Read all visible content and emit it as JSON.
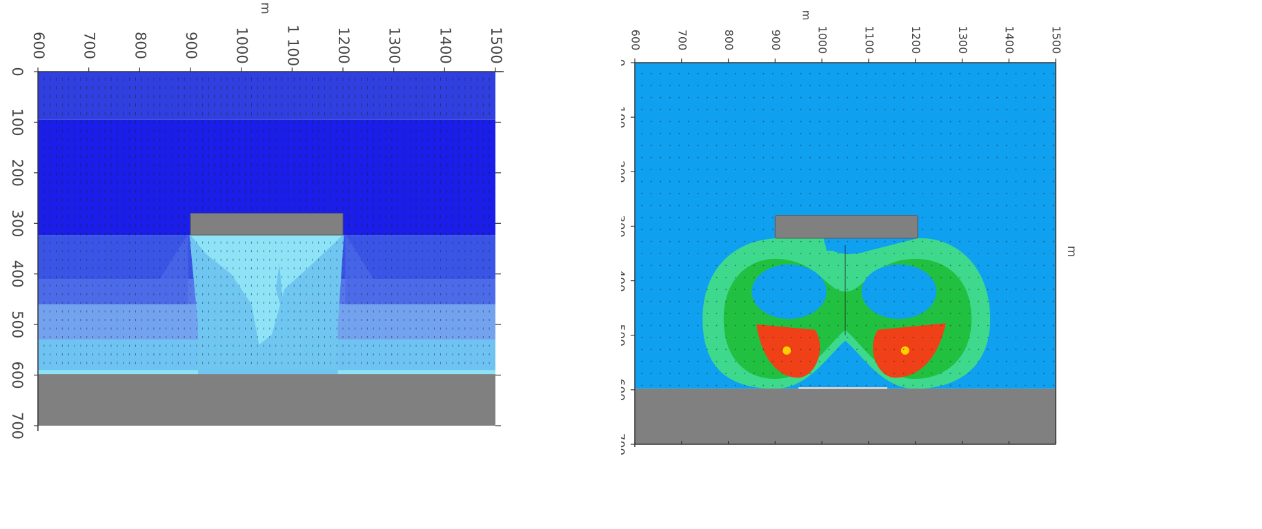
{
  "chart_data": [
    {
      "type": "heatmap",
      "name": "left-panel",
      "xlabel": "m",
      "ylabel": "",
      "xlim": [
        600,
        1500
      ],
      "ylim": [
        0,
        700
      ],
      "x_ticks": [
        "600",
        "700",
        "800",
        "900",
        "1000",
        "1 100",
        "1200",
        "1300",
        "1400",
        "1500"
      ],
      "x_tick_values": [
        600,
        700,
        800,
        900,
        1000,
        1100,
        1200,
        1300,
        1400,
        1500
      ],
      "y_ticks": [
        "0",
        "100",
        "200",
        "300",
        "400",
        "500",
        "600",
        "700"
      ],
      "y_tick_values": [
        0,
        100,
        200,
        300,
        400,
        500,
        600,
        700
      ],
      "inclusion": {
        "x": [
          900,
          1200
        ],
        "y": [
          280,
          323
        ]
      },
      "ground_from": 598,
      "layers": [
        {
          "from": 0,
          "to": 95,
          "color": "#3040e0"
        },
        {
          "from": 95,
          "to": 323,
          "color": "#1a1ee8"
        },
        {
          "from": 323,
          "to": 410,
          "color": "#3a55e6"
        },
        {
          "from": 410,
          "to": 460,
          "color": "#5577ea"
        },
        {
          "from": 460,
          "to": 530,
          "color": "#73a2ef"
        },
        {
          "from": 530,
          "to": 598,
          "color": "#6ec3f2"
        }
      ],
      "plume_color": "#8ee3f7",
      "ground_color": "#808080",
      "colors": {
        "arrows": "#222222"
      }
    },
    {
      "type": "heatmap",
      "name": "right-panel",
      "xlabel": "m",
      "ylabel": "m",
      "xlim": [
        600,
        1500
      ],
      "ylim": [
        0,
        700
      ],
      "x_ticks": [
        "600",
        "700",
        "800",
        "900",
        "1000",
        "1100",
        "1200",
        "1300",
        "1400",
        "1500"
      ],
      "x_tick_values": [
        600,
        700,
        800,
        900,
        1000,
        1100,
        1200,
        1300,
        1400,
        1500
      ],
      "y_ticks": [
        "0",
        "100",
        "200",
        "300",
        "400",
        "500",
        "600",
        "700"
      ],
      "y_tick_values": [
        0,
        100,
        200,
        300,
        400,
        500,
        600,
        700
      ],
      "inclusion": {
        "x": [
          900,
          1205
        ],
        "y": [
          280,
          322
        ]
      },
      "ground_from": 598,
      "background_color": "#0fa0f0",
      "contour_colors": [
        "#3ed98c",
        "#22c040",
        "#f04018",
        "#ffd000"
      ],
      "hotspots": [
        {
          "x": 925,
          "y": 528
        },
        {
          "x": 1178,
          "y": 528
        }
      ],
      "ground_color": "#808080",
      "colors": {
        "arrows": "#222222"
      }
    }
  ]
}
